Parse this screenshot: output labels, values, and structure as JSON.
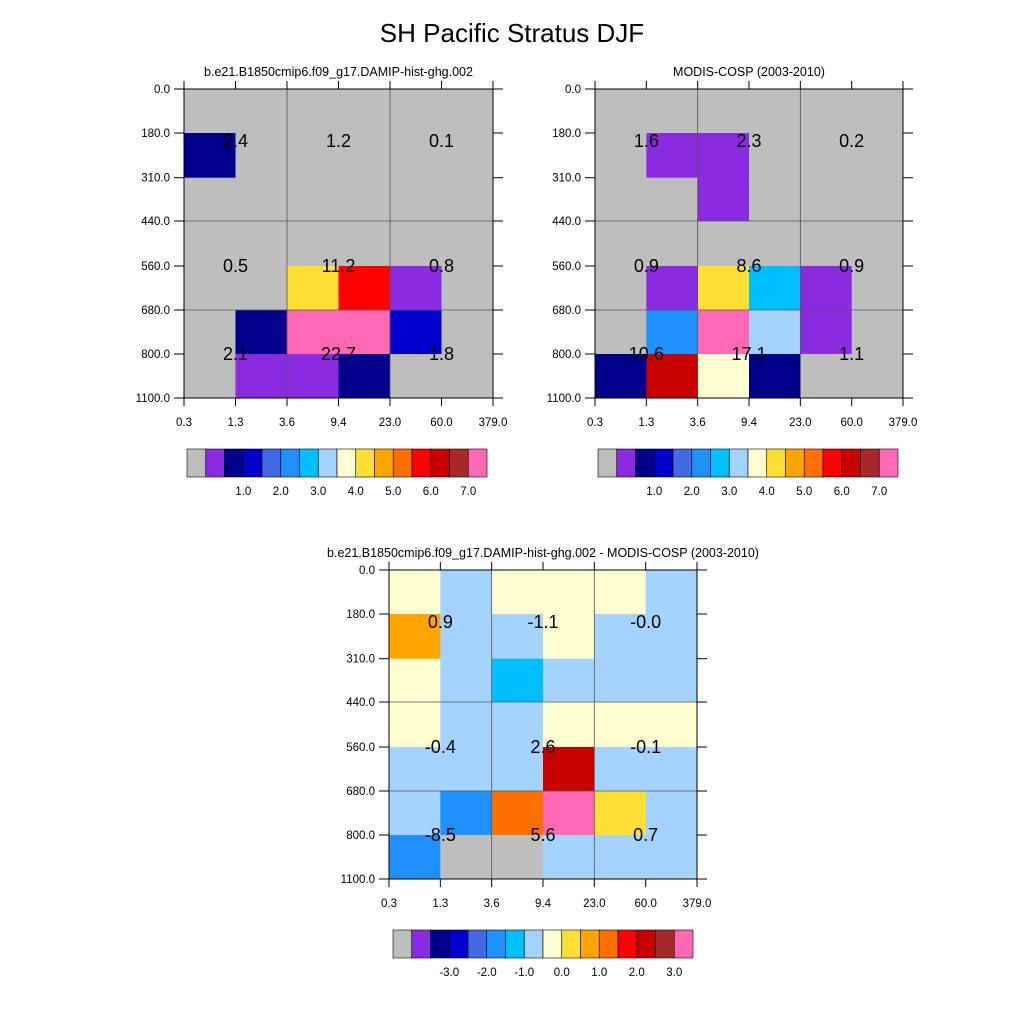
{
  "title": "SH Pacific Stratus DJF",
  "chart_data": [
    {
      "type": "heatmap",
      "title": "b.e21.B1850cmip6.f09_g17.DAMIP-hist-ghg.002",
      "x_tick_labels": [
        "0.3",
        "1.3",
        "3.6",
        "9.4",
        "23.0",
        "60.0",
        "379.0"
      ],
      "y_tick_labels": [
        "0.0",
        "180.0",
        "310.0",
        "440.0",
        "560.0",
        "680.0",
        "800.0",
        "1100.0"
      ],
      "cell_colors": [
        [
          "gray",
          "gray",
          "gray",
          "gray",
          "gray",
          "gray"
        ],
        [
          "navy",
          "gray",
          "gray",
          "gray",
          "gray",
          "gray"
        ],
        [
          "gray",
          "gray",
          "gray",
          "gray",
          "gray",
          "gray"
        ],
        [
          "gray",
          "gray",
          "gray",
          "gray",
          "gray",
          "gray"
        ],
        [
          "gray",
          "gray",
          "gold",
          "red",
          "violet",
          "gray"
        ],
        [
          "gray",
          "navy",
          "pink",
          "pink",
          "blue",
          "gray"
        ],
        [
          "gray",
          "violet",
          "violet",
          "navy",
          "gray",
          "gray"
        ]
      ],
      "block_labels": [
        [
          "2.4",
          "1.2",
          "0.1"
        ],
        [
          "0.5",
          "11.2",
          "0.8"
        ],
        [
          "2.1",
          "22.7",
          "1.8"
        ]
      ],
      "colorbar": {
        "colors": [
          "gray",
          "violet",
          "navy",
          "blue",
          "royalblue",
          "dodgerblue",
          "deepskyblue",
          "lightblue",
          "lightyellow",
          "gold",
          "orange",
          "darkorange",
          "red",
          "darkred",
          "brown",
          "pink"
        ],
        "tick_labels": [
          "1.0",
          "2.0",
          "3.0",
          "4.0",
          "5.0",
          "6.0",
          "7.0"
        ]
      }
    },
    {
      "type": "heatmap",
      "title": "MODIS-COSP (2003-2010)",
      "x_tick_labels": [
        "0.3",
        "1.3",
        "3.6",
        "9.4",
        "23.0",
        "60.0",
        "379.0"
      ],
      "y_tick_labels": [
        "0.0",
        "180.0",
        "310.0",
        "440.0",
        "560.0",
        "680.0",
        "800.0",
        "1100.0"
      ],
      "cell_colors": [
        [
          "gray",
          "gray",
          "gray",
          "gray",
          "gray",
          "gray"
        ],
        [
          "gray",
          "violet",
          "violet",
          "gray",
          "gray",
          "gray"
        ],
        [
          "gray",
          "gray",
          "violet",
          "gray",
          "gray",
          "gray"
        ],
        [
          "gray",
          "gray",
          "gray",
          "gray",
          "gray",
          "gray"
        ],
        [
          "gray",
          "violet",
          "gold",
          "deepskyblue",
          "violet",
          "gray"
        ],
        [
          "gray",
          "dodgerblue",
          "pink",
          "lightblue",
          "violet",
          "gray"
        ],
        [
          "navy",
          "darkred",
          "lightyellow",
          "navy",
          "gray",
          "gray"
        ]
      ],
      "block_labels": [
        [
          "1.6",
          "2.3",
          "0.2"
        ],
        [
          "0.9",
          "8.6",
          "0.9"
        ],
        [
          "10.6",
          "17.1",
          "1.1"
        ]
      ],
      "colorbar": {
        "colors": [
          "gray",
          "violet",
          "navy",
          "blue",
          "royalblue",
          "dodgerblue",
          "deepskyblue",
          "lightblue",
          "lightyellow",
          "gold",
          "orange",
          "darkorange",
          "red",
          "darkred",
          "brown",
          "pink"
        ],
        "tick_labels": [
          "1.0",
          "2.0",
          "3.0",
          "4.0",
          "5.0",
          "6.0",
          "7.0"
        ]
      }
    },
    {
      "type": "heatmap",
      "title": "b.e21.B1850cmip6.f09_g17.DAMIP-hist-ghg.002 - MODIS-COSP (2003-2010)",
      "x_tick_labels": [
        "0.3",
        "1.3",
        "3.6",
        "9.4",
        "23.0",
        "60.0",
        "379.0"
      ],
      "y_tick_labels": [
        "0.0",
        "180.0",
        "310.0",
        "440.0",
        "560.0",
        "680.0",
        "800.0",
        "1100.0"
      ],
      "cell_colors": [
        [
          "lightyellow",
          "lightblue",
          "lightyellow",
          "lightyellow",
          "lightyellow",
          "lightblue"
        ],
        [
          "orange",
          "lightblue",
          "lightblue",
          "lightyellow",
          "lightblue",
          "lightblue"
        ],
        [
          "lightyellow",
          "lightblue",
          "deepskyblue",
          "lightblue",
          "lightblue",
          "lightblue"
        ],
        [
          "lightyellow",
          "lightblue",
          "lightblue",
          "lightyellow",
          "lightyellow",
          "lightyellow"
        ],
        [
          "lightblue",
          "lightblue",
          "lightblue",
          "darkred",
          "lightblue",
          "lightblue"
        ],
        [
          "lightblue",
          "dodgerblue",
          "darkorange",
          "pink",
          "gold",
          "lightblue"
        ],
        [
          "dodgerblue",
          "gray",
          "gray",
          "lightblue",
          "lightblue",
          "lightblue"
        ]
      ],
      "block_labels": [
        [
          "0.9",
          "-1.1",
          "-0.0"
        ],
        [
          "-0.4",
          "2.6",
          "-0.1"
        ],
        [
          "-8.5",
          "5.6",
          "0.7"
        ]
      ],
      "colorbar": {
        "colors": [
          "gray",
          "violet",
          "navy",
          "blue",
          "royalblue",
          "dodgerblue",
          "deepskyblue",
          "lightblue",
          "lightyellow",
          "gold",
          "orange",
          "darkorange",
          "red",
          "darkred",
          "brown",
          "pink"
        ],
        "tick_labels": [
          "-3.0",
          "-2.0",
          "-1.0",
          "0.0",
          "1.0",
          "2.0",
          "3.0"
        ]
      }
    }
  ],
  "colors": {
    "gray": "#bebebe",
    "violet": "#8a2be2",
    "navy": "#00008b",
    "blue": "#0000cd",
    "royalblue": "#4169e1",
    "dodgerblue": "#1e90ff",
    "deepskyblue": "#00bfff",
    "lightblue": "#a4d3fe",
    "lightyellow": "#fffed0",
    "gold": "#ffdf33",
    "orange": "#ffa500",
    "darkorange": "#ff6e00",
    "red": "#ff0000",
    "darkred": "#c80000",
    "brown": "#a52a2a",
    "pink": "#ff69b4"
  }
}
